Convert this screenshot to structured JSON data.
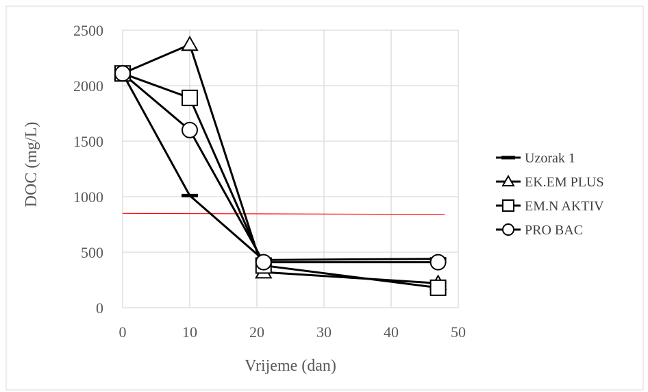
{
  "chart_data": {
    "type": "line",
    "title": "",
    "xlabel": "Vrijeme (dan)",
    "ylabel": "DOC (mg/L)",
    "xlim": [
      0,
      50
    ],
    "ylim": [
      0,
      2500
    ],
    "xticks": [
      "0",
      "10",
      "20",
      "30",
      "40",
      "50"
    ],
    "yticks": [
      "0",
      "500",
      "1000",
      "1500",
      "2000",
      "2500"
    ],
    "grid": true,
    "legend_position": "right",
    "series": [
      {
        "name": "Uzorak 1",
        "marker": "dash",
        "points": [
          [
            0,
            2110
          ],
          [
            10,
            1010
          ],
          [
            21,
            430
          ],
          [
            47,
            440
          ]
        ]
      },
      {
        "name": "EK.EM PLUS",
        "marker": "triangle",
        "points": [
          [
            0,
            2110
          ],
          [
            10,
            2370
          ],
          [
            21,
            320
          ],
          [
            47,
            220
          ]
        ]
      },
      {
        "name": "EM.N AKTIV",
        "marker": "square",
        "points": [
          [
            0,
            2110
          ],
          [
            10,
            1890
          ],
          [
            21,
            380
          ],
          [
            47,
            180
          ]
        ]
      },
      {
        "name": "PRO BAC",
        "marker": "circle",
        "points": [
          [
            0,
            2110
          ],
          [
            10,
            1600
          ],
          [
            21,
            410
          ],
          [
            47,
            410
          ]
        ]
      }
    ],
    "reference_line": {
      "color": "#ff0000",
      "points": [
        [
          0,
          850
        ],
        [
          48,
          840
        ]
      ]
    }
  }
}
